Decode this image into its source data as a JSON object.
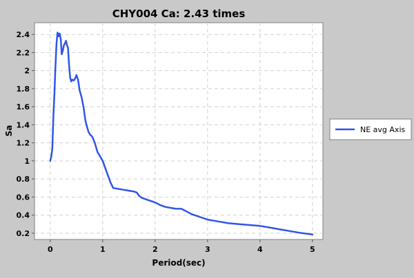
{
  "chart_data": {
    "type": "line",
    "title": "CHY004 Ca: 2.43 times",
    "xlabel": "Period(sec)",
    "ylabel": "Sa",
    "xlim": [
      -0.3,
      5.2
    ],
    "ylim": [
      0.13,
      2.53
    ],
    "x_ticks": [
      0,
      1,
      2,
      3,
      4,
      5
    ],
    "x_tick_labels": [
      "0",
      "1",
      "2",
      "3",
      "4",
      "5"
    ],
    "y_ticks": [
      0.2,
      0.4,
      0.6,
      0.8,
      1.0,
      1.2,
      1.4,
      1.6,
      1.8,
      2.0,
      2.2,
      2.4
    ],
    "y_tick_labels": [
      "0.2",
      "0.4",
      "0.6",
      "0.8",
      "1",
      "1.2",
      "1.4",
      "1.6",
      "1.8",
      "2",
      "2.2",
      "2.4"
    ],
    "grid": true,
    "legend_position": "right",
    "series": [
      {
        "name": "NE avg Axis",
        "color": "#2e55e8",
        "x": [
          0.0,
          0.02,
          0.04,
          0.06,
          0.08,
          0.1,
          0.12,
          0.14,
          0.16,
          0.18,
          0.2,
          0.22,
          0.24,
          0.26,
          0.28,
          0.3,
          0.32,
          0.34,
          0.36,
          0.38,
          0.4,
          0.42,
          0.45,
          0.48,
          0.5,
          0.53,
          0.56,
          0.6,
          0.64,
          0.67,
          0.7,
          0.73,
          0.76,
          0.8,
          0.85,
          0.9,
          0.95,
          1.0,
          1.05,
          1.1,
          1.15,
          1.2,
          1.3,
          1.4,
          1.5,
          1.6,
          1.65,
          1.7,
          1.75,
          1.8,
          1.85,
          1.9,
          2.0,
          2.1,
          2.2,
          2.3,
          2.4,
          2.5,
          2.6,
          2.7,
          2.8,
          2.9,
          3.0,
          3.2,
          3.4,
          3.6,
          3.8,
          4.0,
          4.2,
          4.4,
          4.6,
          4.8,
          5.0
        ],
        "y": [
          1.0,
          1.05,
          1.13,
          1.5,
          1.75,
          2.05,
          2.3,
          2.42,
          2.38,
          2.41,
          2.35,
          2.18,
          2.22,
          2.28,
          2.3,
          2.33,
          2.28,
          2.25,
          2.05,
          1.92,
          1.88,
          1.9,
          1.89,
          1.92,
          1.95,
          1.9,
          1.78,
          1.7,
          1.58,
          1.45,
          1.38,
          1.32,
          1.29,
          1.27,
          1.2,
          1.1,
          1.05,
          1.0,
          0.92,
          0.84,
          0.76,
          0.7,
          0.69,
          0.68,
          0.67,
          0.66,
          0.65,
          0.61,
          0.59,
          0.58,
          0.57,
          0.56,
          0.54,
          0.51,
          0.49,
          0.48,
          0.47,
          0.47,
          0.44,
          0.41,
          0.39,
          0.37,
          0.35,
          0.33,
          0.31,
          0.3,
          0.29,
          0.28,
          0.26,
          0.24,
          0.22,
          0.2,
          0.185
        ]
      }
    ]
  }
}
